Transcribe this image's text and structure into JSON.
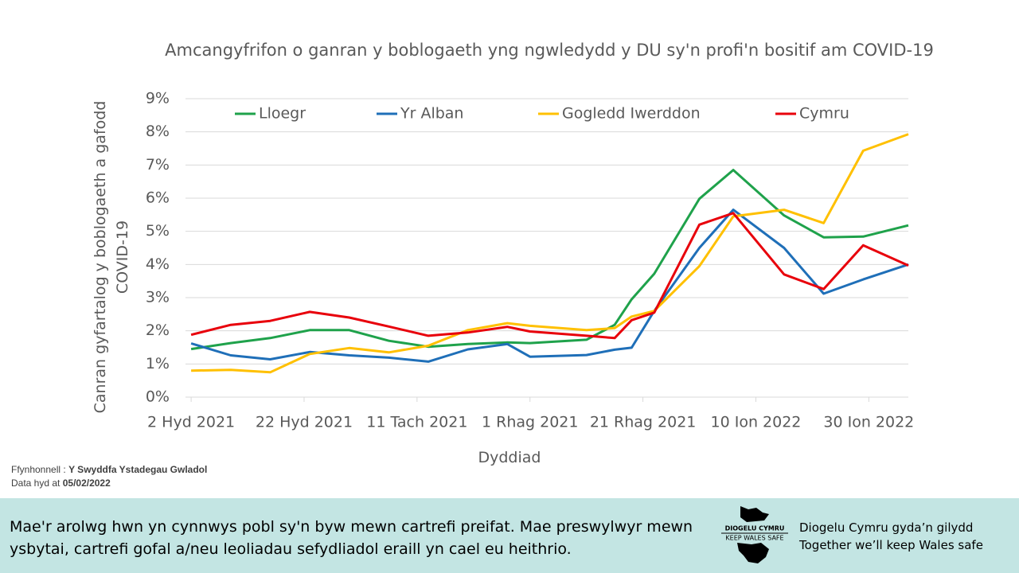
{
  "chart_data": {
    "type": "line",
    "title": "Amcangyfrifon o ganran y boblogaeth yng ngwledydd y DU sy'n profi'n bositif am COVID-19",
    "x_label": "Dyddiad",
    "y_label": "Canran gyfartalog y boblogaeth a gafodd COVID-19",
    "x": [
      "2021-10-02",
      "2021-10-09",
      "2021-10-16",
      "2021-10-23",
      "2021-10-30",
      "2021-11-06",
      "2021-11-13",
      "2021-11-20",
      "2021-11-27",
      "2021-12-01",
      "2021-12-11",
      "2021-12-16",
      "2021-12-19",
      "2021-12-23",
      "2021-12-31",
      "2022-01-06",
      "2022-01-15",
      "2022-01-22",
      "2022-01-29",
      "2022-02-06"
    ],
    "xlim": [
      "2021-10-01",
      "2022-02-06"
    ],
    "xticks": [
      {
        "value": "2021-10-02",
        "label": "2 Hyd 2021"
      },
      {
        "value": "2021-10-22",
        "label": "22 Hyd 2021"
      },
      {
        "value": "2021-11-11",
        "label": "11 Tach 2021"
      },
      {
        "value": "2021-12-01",
        "label": "1 Rhag 2021"
      },
      {
        "value": "2021-12-21",
        "label": "21 Rhag 2021"
      },
      {
        "value": "2022-01-10",
        "label": "10 Ion 2022"
      },
      {
        "value": "2022-01-30",
        "label": "30 Ion 2022"
      }
    ],
    "ylim": [
      0,
      9
    ],
    "yticks": [
      {
        "value": 0,
        "label": "0%"
      },
      {
        "value": 1,
        "label": "1%"
      },
      {
        "value": 2,
        "label": "2%"
      },
      {
        "value": 3,
        "label": "3%"
      },
      {
        "value": 4,
        "label": "4%"
      },
      {
        "value": 5,
        "label": "5%"
      },
      {
        "value": 6,
        "label": "6%"
      },
      {
        "value": 7,
        "label": "7%"
      },
      {
        "value": 8,
        "label": "8%"
      },
      {
        "value": 9,
        "label": "9%"
      }
    ],
    "grid": true,
    "legend": "top",
    "series": [
      {
        "name": "Lloegr",
        "color": "#1fa24b",
        "values": [
          1.45,
          1.63,
          1.78,
          2.02,
          2.02,
          1.7,
          1.52,
          1.6,
          1.65,
          1.63,
          1.73,
          2.18,
          2.95,
          3.72,
          5.98,
          6.85,
          5.48,
          4.82,
          4.84,
          5.18
        ]
      },
      {
        "name": "Yr Alban",
        "color": "#1f6fb8",
        "values": [
          1.62,
          1.26,
          1.14,
          1.36,
          1.26,
          1.19,
          1.07,
          1.44,
          1.6,
          1.22,
          1.27,
          1.43,
          1.49,
          2.6,
          4.5,
          5.65,
          4.5,
          3.12,
          3.55,
          4.0
        ]
      },
      {
        "name": "Gogledd Iwerddon",
        "color": "#ffc000",
        "values": [
          0.8,
          0.82,
          0.75,
          1.3,
          1.48,
          1.35,
          1.55,
          2.02,
          2.23,
          2.15,
          2.02,
          2.08,
          2.43,
          2.6,
          3.95,
          5.45,
          5.65,
          5.25,
          7.43,
          7.93
        ]
      },
      {
        "name": "Cymru",
        "color": "#e8000b",
        "values": [
          1.88,
          2.18,
          2.3,
          2.57,
          2.4,
          2.13,
          1.85,
          1.95,
          2.12,
          1.98,
          1.85,
          1.78,
          2.32,
          2.55,
          5.2,
          5.55,
          3.7,
          3.26,
          4.58,
          3.97
        ]
      }
    ]
  },
  "source": {
    "label": "Ffynhonnell :",
    "value": "Y Swyddfa Ystadegau Gwladol"
  },
  "data_date": {
    "label": "Data hyd at",
    "value": "05/02/2022"
  },
  "banner": {
    "note": "Mae'r arolwg hwn yn cynnwys pobl sy'n byw mewn cartrefi preifat. Mae preswylwyr mewn ysbytai, cartrefi gofal a/neu leoliadau sefydliadol eraill yn cael eu heithrio.",
    "logo_top": "DIOGELU CYMRU",
    "logo_bottom": "KEEP WALES SAFE",
    "slogan_welsh": "Diogelu Cymru gyda’n gilydd",
    "slogan_english": "Together we’ll keep Wales safe"
  }
}
